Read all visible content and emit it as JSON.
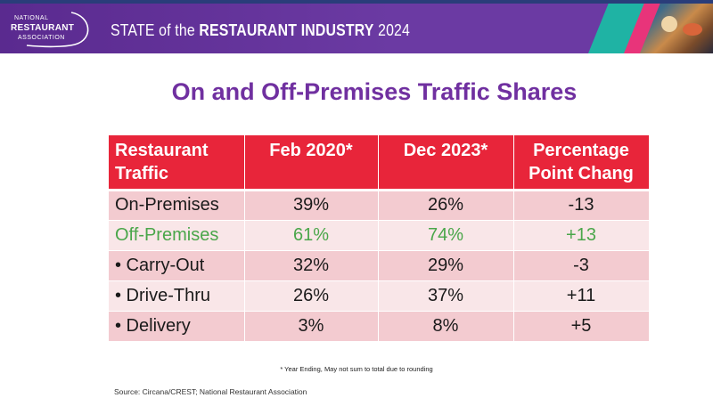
{
  "banner": {
    "logo": {
      "line1": "NATIONAL",
      "line2": "RESTAURANT",
      "line3": "ASSOCIATION"
    },
    "title_prefix": "STATE of the ",
    "title_bold": "RESTAURANT INDUSTRY",
    "title_year": " 2024"
  },
  "slide": {
    "title": "On and Off-Premises Traffic Shares"
  },
  "table": {
    "headers": [
      [
        "Restaurant",
        "Traffic"
      ],
      [
        "Feb 2020*",
        ""
      ],
      [
        "Dec 2023*",
        ""
      ],
      [
        "Percentage",
        "Point Chang"
      ]
    ],
    "rows": [
      {
        "label": "On-Premises",
        "feb2020": "39%",
        "dec2023": "26%",
        "change": "-13"
      },
      {
        "label": "Off-Premises",
        "feb2020": "61%",
        "dec2023": "74%",
        "change": "+13"
      },
      {
        "label": "• Carry-Out",
        "feb2020": "32%",
        "dec2023": "29%",
        "change": "-3"
      },
      {
        "label": "• Drive-Thru",
        "feb2020": "26%",
        "dec2023": "37%",
        "change": "+11"
      },
      {
        "label": "• Delivery",
        "feb2020": "3%",
        "dec2023": "8%",
        "change": "+5"
      }
    ]
  },
  "footnote": "* Year Ending, May not sum to total due to rounding",
  "source": "Source: Circana/CREST;  National Restaurant Association",
  "colors": {
    "banner": "#6b3aa3",
    "title": "#7030a0",
    "header": "#e8253a",
    "row_dark": "#f3cbd0",
    "row_light": "#f9e6e8",
    "highlight": "#4aa64a"
  }
}
